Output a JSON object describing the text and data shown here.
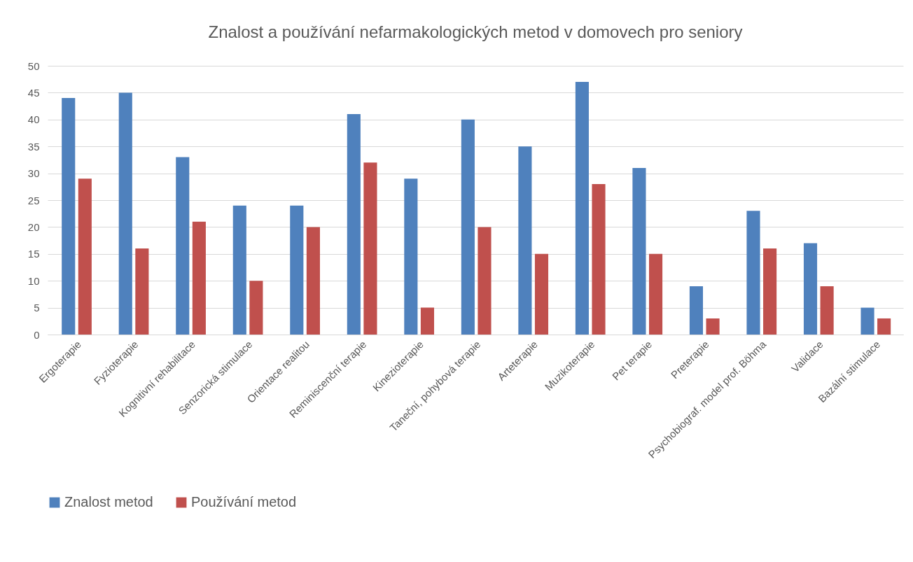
{
  "chart_data": {
    "type": "bar",
    "title": "Znalost a používání nefarmakologických metod v domovech pro seniory",
    "categories": [
      "Ergoterapie",
      "Fyzioterapie",
      "Kognitivní rehabilitace",
      "Senzorická stimulace",
      "Orientace realitou",
      "Reminiscenční terapie",
      "Kinezioterapie",
      "Taneční, pohybová terapie",
      "Arteterapie",
      "Muzikoterapie",
      "Pet terapie",
      "Preterapie",
      "Psychobiograf. model prof. Böhma",
      "Validace",
      "Bazální stimulace"
    ],
    "series": [
      {
        "name": "Znalost metod",
        "color": "#4f81bd",
        "values": [
          44,
          45,
          33,
          24,
          24,
          41,
          29,
          40,
          35,
          47,
          31,
          9,
          23,
          17,
          5
        ]
      },
      {
        "name": "Používání metod",
        "color": "#c0504d",
        "values": [
          29,
          16,
          21,
          10,
          20,
          32,
          5,
          20,
          15,
          28,
          15,
          3,
          16,
          9,
          3
        ]
      }
    ],
    "ylim": [
      0,
      50
    ],
    "yticks": [
      0,
      5,
      10,
      15,
      20,
      25,
      30,
      35,
      40,
      45,
      50
    ],
    "grid": "y",
    "legend": "bottom"
  }
}
